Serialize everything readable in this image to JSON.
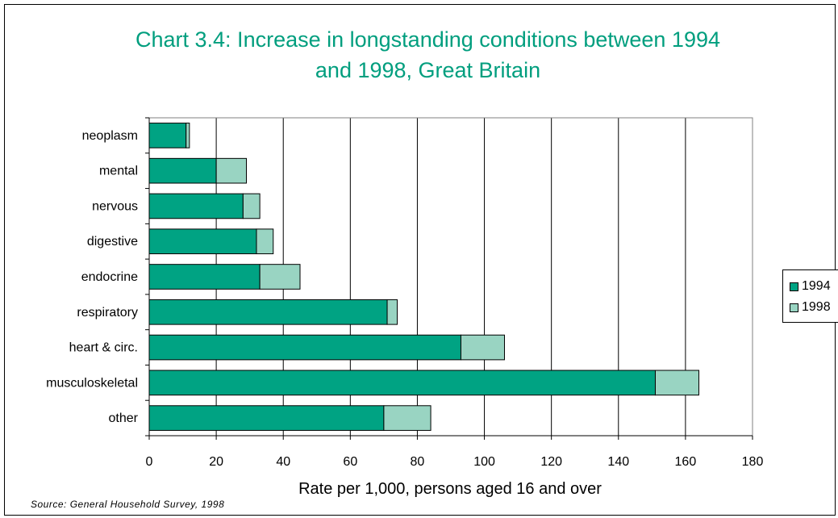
{
  "chart_data": {
    "type": "bar",
    "orientation": "horizontal",
    "stacked": true,
    "title": [
      "Chart 3.4: Increase in longstanding conditions between 1994",
      "and 1998, Great Britain"
    ],
    "xlabel": "Rate per 1,000, persons aged 16 and over",
    "ylabel": "",
    "xlim": [
      0,
      180
    ],
    "xticks": [
      0,
      20,
      40,
      60,
      80,
      100,
      120,
      140,
      160,
      180
    ],
    "grid": "vertical",
    "legend_position": "right",
    "categories": [
      "neoplasm",
      "mental",
      "nervous",
      "digestive",
      "endocrine",
      "respiratory",
      "heart & circ.",
      "musculoskeletal",
      "other"
    ],
    "series": [
      {
        "name": "1994",
        "color": "#00a383",
        "values": [
          11,
          20,
          28,
          32,
          33,
          71,
          93,
          151,
          70
        ]
      },
      {
        "name": "1998",
        "color": "#99d4c2",
        "values": [
          1,
          9,
          5,
          5,
          12,
          3,
          13,
          13,
          14
        ]
      }
    ]
  },
  "source": "Source: General Household Survey, 1998"
}
